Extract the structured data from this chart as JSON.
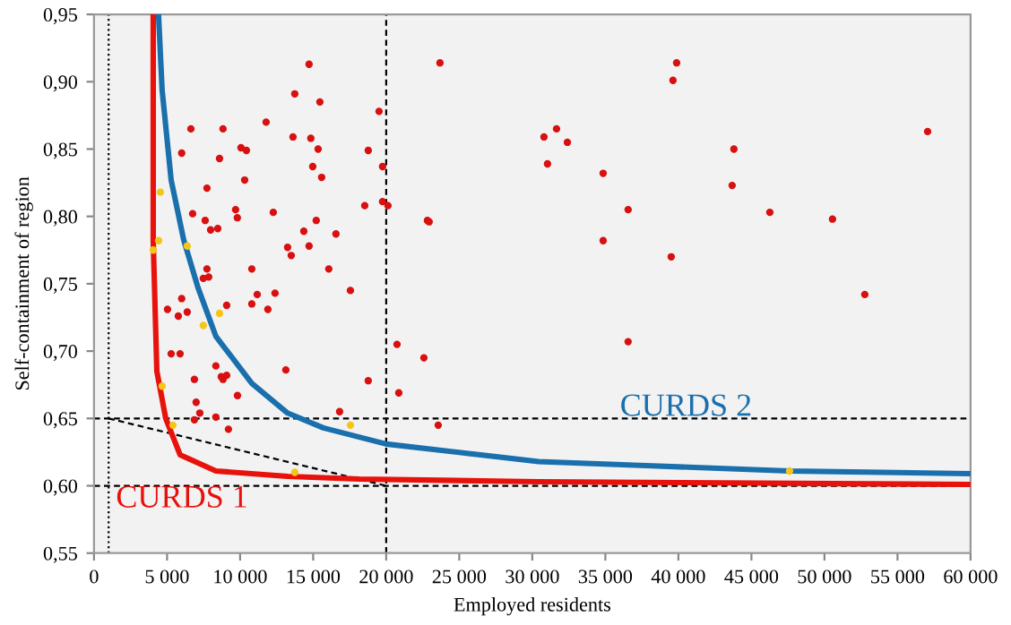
{
  "chart_data": {
    "type": "scatter",
    "xlabel": "Employed residents",
    "ylabel": "Self-containment of region",
    "xlim": [
      0,
      60000
    ],
    "ylim": [
      0.55,
      0.95
    ],
    "xticks": [
      {
        "value": 0,
        "label": "0"
      },
      {
        "value": 5000,
        "label": "5 000"
      },
      {
        "value": 10000,
        "label": "10 000"
      },
      {
        "value": 15000,
        "label": "15 000"
      },
      {
        "value": 20000,
        "label": "20 000"
      },
      {
        "value": 25000,
        "label": "25 000"
      },
      {
        "value": 30000,
        "label": "30 000"
      },
      {
        "value": 35000,
        "label": "35 000"
      },
      {
        "value": 40000,
        "label": "40 000"
      },
      {
        "value": 45000,
        "label": "45 000"
      },
      {
        "value": 50000,
        "label": "50 000"
      },
      {
        "value": 55000,
        "label": "55 000"
      },
      {
        "value": 60000,
        "label": "60 000"
      }
    ],
    "yticks": [
      {
        "value": 0.55,
        "label": "0,55"
      },
      {
        "value": 0.6,
        "label": "0,60"
      },
      {
        "value": 0.65,
        "label": "0,65"
      },
      {
        "value": 0.7,
        "label": "0,70"
      },
      {
        "value": 0.75,
        "label": "0,75"
      },
      {
        "value": 0.8,
        "label": "0,80"
      },
      {
        "value": 0.85,
        "label": "0,85"
      },
      {
        "value": 0.9,
        "label": "0,90"
      },
      {
        "value": 0.95,
        "label": "0,95"
      }
    ],
    "grid": false,
    "ref_lines": [
      {
        "axis": "x",
        "value": 1000,
        "line_style": "dotted",
        "color": "#000000"
      },
      {
        "axis": "x",
        "value": 20000,
        "line_style": "dashed",
        "color": "#000000"
      },
      {
        "axis": "y",
        "value": 0.65,
        "line_style": "dashed",
        "color": "#000000"
      },
      {
        "axis": "y",
        "value": 0.6,
        "line_style": "dashed",
        "color": "#000000"
      }
    ],
    "series": [
      {
        "type": "line",
        "color": "#000000",
        "line_style": "dashed",
        "marker": "none",
        "x": [
          1000,
          20000
        ],
        "values": [
          0.65,
          0.6
        ]
      },
      {
        "type": "line",
        "name": "CURDS 1",
        "color": "#e8120c",
        "line_style": "solid",
        "marker": "none",
        "x": [
          4050,
          4050,
          4300,
          4910,
          5890,
          8340,
          13250,
          18160,
          30430,
          60000
        ],
        "values": [
          0.949,
          0.783,
          0.685,
          0.65,
          0.623,
          0.611,
          0.607,
          0.605,
          0.603,
          0.601
        ]
      },
      {
        "type": "line",
        "name": "CURDS 2",
        "color": "#1a6fad",
        "line_style": "solid",
        "marker": "none",
        "x": [
          4420,
          4660,
          5280,
          6130,
          7120,
          8340,
          10800,
          13250,
          15700,
          20000,
          30430,
          37800,
          47600,
          60000
        ],
        "values": [
          0.949,
          0.894,
          0.827,
          0.783,
          0.747,
          0.711,
          0.676,
          0.654,
          0.643,
          0.631,
          0.618,
          0.615,
          0.611,
          0.609
        ]
      },
      {
        "color": "#d81010",
        "marker": "circle",
        "x": [
          6000,
          6630,
          8830,
          8590,
          10060,
          10430,
          10310,
          7730,
          11780,
          6750,
          7610,
          7980,
          8470,
          9690,
          9810,
          12270,
          7730,
          7850,
          7480,
          10800,
          11170,
          12390,
          10800,
          11900,
          9080,
          6000,
          5770,
          6380,
          5030,
          5280,
          5890,
          6870,
          8340,
          8710,
          8830,
          9080,
          9820,
          6990,
          7240,
          6870,
          8340,
          9200,
          14720,
          13740,
          15460,
          13620,
          14840,
          15340,
          14970,
          15580,
          15210,
          16560,
          14360,
          13250,
          13500,
          14720,
          16070,
          17550,
          13130,
          16810,
          23680,
          19510,
          18770,
          19750,
          19750,
          20120,
          18530,
          22820,
          22940,
          20740,
          22580,
          18770,
          20860,
          23560,
          30800,
          31660,
          32400,
          31040,
          34850,
          34850,
          36560,
          36560,
          39880,
          39630,
          39510,
          57060,
          43800,
          43680,
          46260,
          50550,
          52760
        ],
        "values": [
          0.847,
          0.865,
          0.865,
          0.843,
          0.851,
          0.849,
          0.827,
          0.821,
          0.87,
          0.802,
          0.797,
          0.79,
          0.791,
          0.805,
          0.799,
          0.803,
          0.761,
          0.755,
          0.754,
          0.761,
          0.742,
          0.743,
          0.735,
          0.731,
          0.734,
          0.739,
          0.726,
          0.729,
          0.731,
          0.698,
          0.698,
          0.679,
          0.689,
          0.681,
          0.679,
          0.682,
          0.667,
          0.662,
          0.654,
          0.649,
          0.651,
          0.642,
          0.913,
          0.891,
          0.885,
          0.859,
          0.858,
          0.85,
          0.837,
          0.829,
          0.797,
          0.787,
          0.789,
          0.777,
          0.771,
          0.778,
          0.761,
          0.745,
          0.686,
          0.655,
          0.914,
          0.878,
          0.849,
          0.837,
          0.811,
          0.808,
          0.808,
          0.797,
          0.796,
          0.705,
          0.695,
          0.678,
          0.669,
          0.645,
          0.859,
          0.865,
          0.855,
          0.839,
          0.832,
          0.782,
          0.805,
          0.707,
          0.914,
          0.901,
          0.77,
          0.863,
          0.85,
          0.823,
          0.803,
          0.798,
          0.742
        ]
      },
      {
        "color": "#f5c518",
        "marker": "circle",
        "x": [
          4540,
          4420,
          4050,
          6380,
          8590,
          7480,
          4660,
          5400,
          13740,
          17550,
          47610
        ],
        "values": [
          0.818,
          0.782,
          0.775,
          0.778,
          0.728,
          0.719,
          0.674,
          0.645,
          0.61,
          0.645,
          0.611
        ]
      }
    ]
  }
}
